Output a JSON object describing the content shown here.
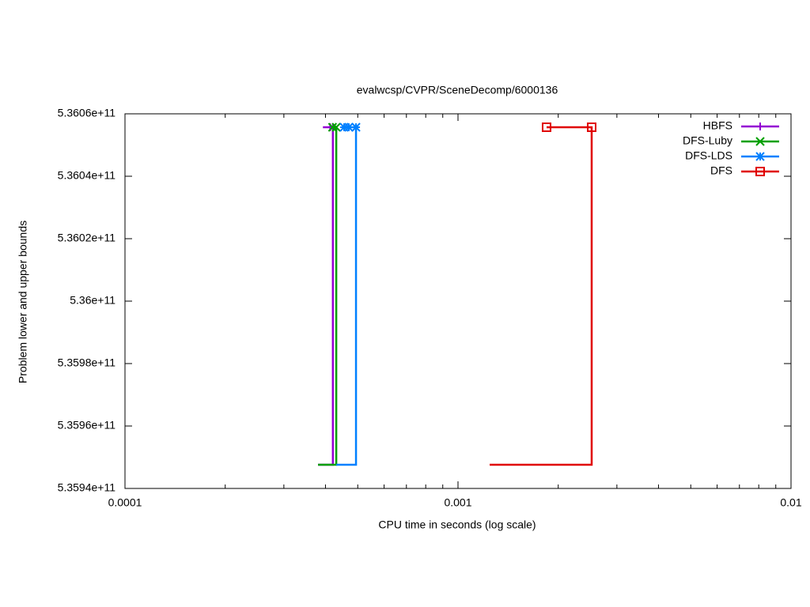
{
  "chart_data": {
    "type": "line",
    "title": "evalwcsp/CVPR/SceneDecomp/6000136",
    "xlabel": "CPU time in seconds (log scale)",
    "ylabel": "Problem lower and upper bounds",
    "xscale": "log",
    "xlim": [
      0.0001,
      0.01
    ],
    "xticks": [
      0.0001,
      0.001,
      0.01
    ],
    "ylim": [
      535940000000,
      536060000000
    ],
    "yticks": [
      {
        "value": 535940000000,
        "label": "5.3594e+11"
      },
      {
        "value": 535960000000,
        "label": "5.3596e+11"
      },
      {
        "value": 535980000000,
        "label": "5.3598e+11"
      },
      {
        "value": 536000000000,
        "label": "5.36e+11"
      },
      {
        "value": 536020000000,
        "label": "5.3602e+11"
      },
      {
        "value": 536040000000,
        "label": "5.3604e+11"
      },
      {
        "value": 536060000000,
        "label": "5.3606e+11"
      }
    ],
    "legend": "top-right",
    "grid": false,
    "series": [
      {
        "name": "HBFS",
        "color": "#9400d3",
        "marker": "plus",
        "x": [
          0.00038,
          0.000421,
          0.000421,
          0.000393
        ],
        "values": [
          535947600000,
          535947600000,
          536055700000,
          536055700000
        ],
        "marker_x": [
          0.000413,
          0.000421
        ],
        "marker_values": [
          536055700000,
          536055700000
        ]
      },
      {
        "name": "DFS-Luby",
        "color": "#00a000",
        "marker": "cross",
        "x": [
          0.00038,
          0.000431,
          0.000431,
          0.00042
        ],
        "values": [
          535947600000,
          535947600000,
          536055700000,
          536055700000
        ],
        "marker_x": [
          0.00042,
          0.000431
        ],
        "marker_values": [
          536055700000,
          536055700000
        ]
      },
      {
        "name": "DFS-LDS",
        "color": "#0080ff",
        "marker": "star",
        "x": [
          0.000431,
          0.000494,
          0.000494,
          0.000455
        ],
        "values": [
          535947600000,
          535947600000,
          536055700000,
          536055700000
        ],
        "marker_x": [
          0.000455,
          0.00047,
          0.000494
        ],
        "marker_values": [
          536055700000,
          536055700000,
          536055700000
        ]
      },
      {
        "name": "DFS",
        "color": "#e00000",
        "marker": "square",
        "x": [
          0.001245,
          0.00252,
          0.00252,
          0.001845
        ],
        "values": [
          535947600000,
          535947600000,
          536055700000,
          536055700000
        ],
        "marker_x": [
          0.001845,
          0.00252
        ],
        "marker_values": [
          536055700000,
          536055700000
        ]
      }
    ]
  }
}
